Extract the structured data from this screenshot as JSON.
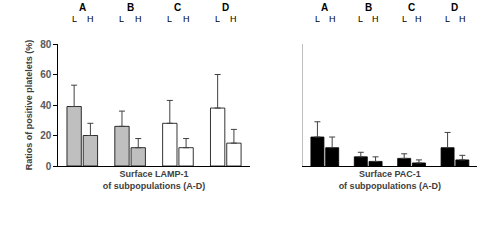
{
  "chart_data": [
    {
      "type": "bar",
      "y_label": "Ratios of positive platelets (%)",
      "x_label": "Surface LAMP-1\nof subpopulations (A-D)",
      "categories": [
        "A",
        "B",
        "C",
        "D"
      ],
      "series": [
        {
          "name": "L",
          "colors": [
            "#bfbfbf",
            "#bfbfbf",
            "#ffffff",
            "#ffffff"
          ],
          "values": [
            39,
            26,
            28,
            38
          ],
          "errors": [
            14,
            10,
            15,
            22
          ]
        },
        {
          "name": "H",
          "colors": [
            "#bfbfbf",
            "#bfbfbf",
            "#ffffff",
            "#ffffff"
          ],
          "values": [
            20,
            12,
            12,
            15
          ],
          "errors": [
            8,
            6,
            6,
            9
          ]
        }
      ],
      "ylim": [
        0,
        80
      ],
      "yticks": [
        0,
        20,
        40,
        60,
        80
      ],
      "grid": false,
      "tick_labels": "y"
    },
    {
      "type": "bar",
      "x_label": "Surface PAC-1\nof subpopulations (A-D)",
      "categories": [
        "A",
        "B",
        "C",
        "D"
      ],
      "series": [
        {
          "name": "L",
          "color": "#000000",
          "values": [
            19,
            6,
            5,
            12
          ],
          "errors": [
            10,
            3,
            3,
            10
          ]
        },
        {
          "name": "H",
          "color": "#000000",
          "values": [
            12,
            3,
            2,
            4
          ],
          "errors": [
            7,
            3,
            2,
            3
          ]
        }
      ],
      "ylim": [
        0,
        80
      ],
      "grid": false,
      "tick_labels": false
    }
  ]
}
